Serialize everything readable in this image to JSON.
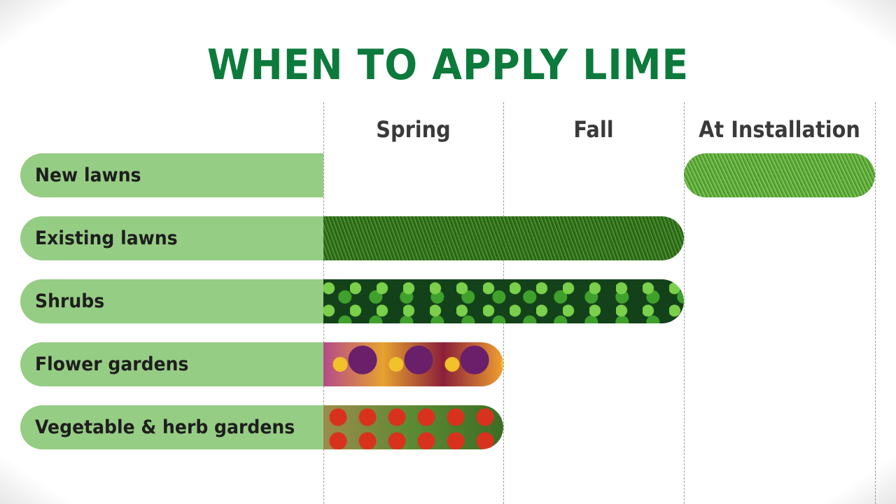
{
  "title": "WHEN TO APPLY LIME",
  "chart_data": {
    "type": "table",
    "columns": [
      "Spring",
      "Fall",
      "At Installation"
    ],
    "rows": [
      {
        "label": "New lawns",
        "applies": [
          "At Installation"
        ],
        "texture": "new-lawn-grass"
      },
      {
        "label": "Existing lawns",
        "applies": [
          "Spring",
          "Fall"
        ],
        "texture": "lawn-grass"
      },
      {
        "label": "Shrubs",
        "applies": [
          "Spring",
          "Fall"
        ],
        "texture": "shrub-leaves"
      },
      {
        "label": "Flower gardens",
        "applies": [
          "Spring"
        ],
        "texture": "pansy-flowers"
      },
      {
        "label": "Vegetable & herb gardens",
        "applies": [
          "Spring"
        ],
        "texture": "tomatoes"
      }
    ]
  },
  "colors": {
    "title": "#0b7a3b",
    "label_fill": "#96cd84",
    "header_text": "#3a3a3a"
  }
}
